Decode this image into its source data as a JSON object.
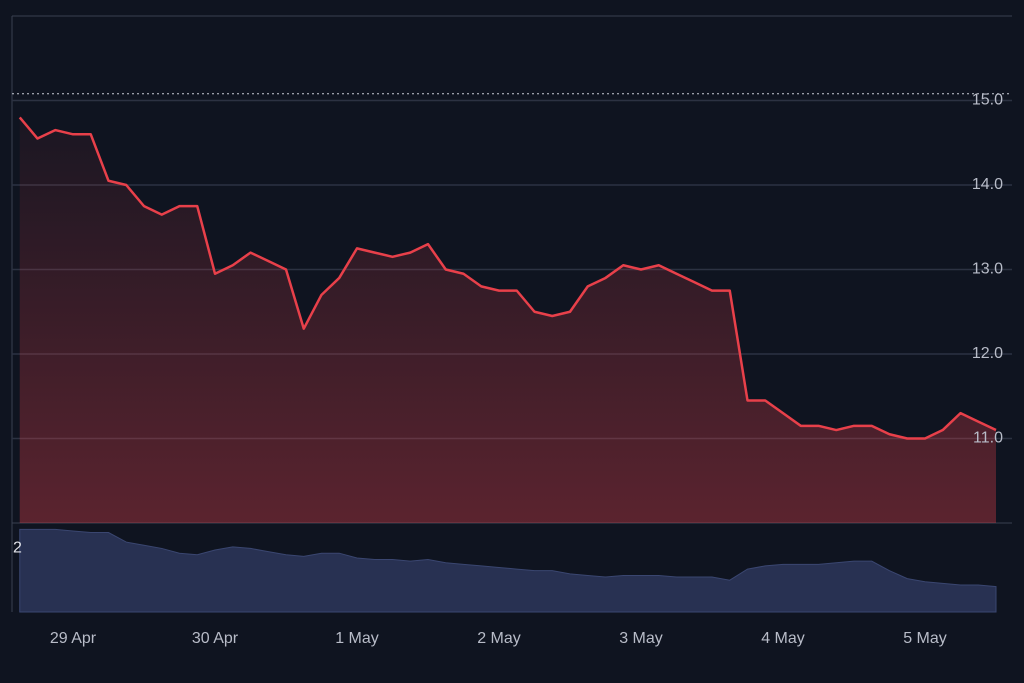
{
  "chart_data": {
    "type": "line",
    "categories": [
      null,
      null,
      null,
      "29 Apr",
      null,
      null,
      null,
      null,
      null,
      null,
      null,
      "30 Apr",
      null,
      null,
      null,
      null,
      null,
      null,
      null,
      "1 May",
      null,
      null,
      null,
      null,
      null,
      null,
      null,
      "2 May",
      null,
      null,
      null,
      null,
      null,
      null,
      null,
      "3 May",
      null,
      null,
      null,
      null,
      null,
      null,
      null,
      "4 May",
      null,
      null,
      null,
      null,
      null,
      null,
      null,
      "5 May",
      null,
      null,
      null,
      null
    ],
    "series": [
      {
        "color": "#e8404a",
        "values": [
          14.8,
          14.55,
          14.65,
          14.6,
          14.6,
          14.05,
          14.0,
          13.75,
          13.65,
          13.75,
          13.75,
          12.95,
          13.05,
          13.2,
          13.1,
          13.0,
          12.3,
          12.7,
          12.9,
          13.25,
          13.2,
          13.15,
          13.2,
          13.3,
          13.0,
          12.95,
          12.8,
          12.75,
          12.75,
          12.5,
          12.45,
          12.5,
          12.8,
          12.9,
          13.05,
          13.0,
          13.05,
          12.95,
          12.85,
          12.75,
          12.75,
          11.45,
          11.45,
          11.3,
          11.15,
          11.15,
          11.1,
          11.15,
          11.15,
          11.05,
          11.0,
          11.0,
          11.1,
          11.3,
          11.2,
          11.1
        ]
      },
      {
        "color": "#283152",
        "axis": "y2",
        "values": [
          2.6,
          2.6,
          2.6,
          2.55,
          2.5,
          2.5,
          2.2,
          2.1,
          2.0,
          1.85,
          1.8,
          1.95,
          2.05,
          2.0,
          1.9,
          1.8,
          1.75,
          1.85,
          1.85,
          1.7,
          1.65,
          1.65,
          1.6,
          1.65,
          1.55,
          1.5,
          1.45,
          1.4,
          1.35,
          1.3,
          1.3,
          1.2,
          1.15,
          1.1,
          1.15,
          1.15,
          1.15,
          1.1,
          1.1,
          1.1,
          1.0,
          1.35,
          1.45,
          1.5,
          1.5,
          1.5,
          1.55,
          1.6,
          1.6,
          1.3,
          1.05,
          0.95,
          0.9,
          0.85,
          0.85,
          0.8
        ]
      }
    ],
    "ylim": [
      10.0,
      16.0
    ],
    "yticks": [
      {
        "value": 11,
        "label": "11.0"
      },
      {
        "value": 12,
        "label": "12.0"
      },
      {
        "value": 13,
        "label": "13.0"
      },
      {
        "value": 14,
        "label": "14.0"
      },
      {
        "value": 15,
        "label": "15.0"
      }
    ],
    "y2lim": [
      0,
      2.8
    ],
    "y2ticks": [
      2
    ],
    "reference_line": 15.08,
    "grid": true
  }
}
